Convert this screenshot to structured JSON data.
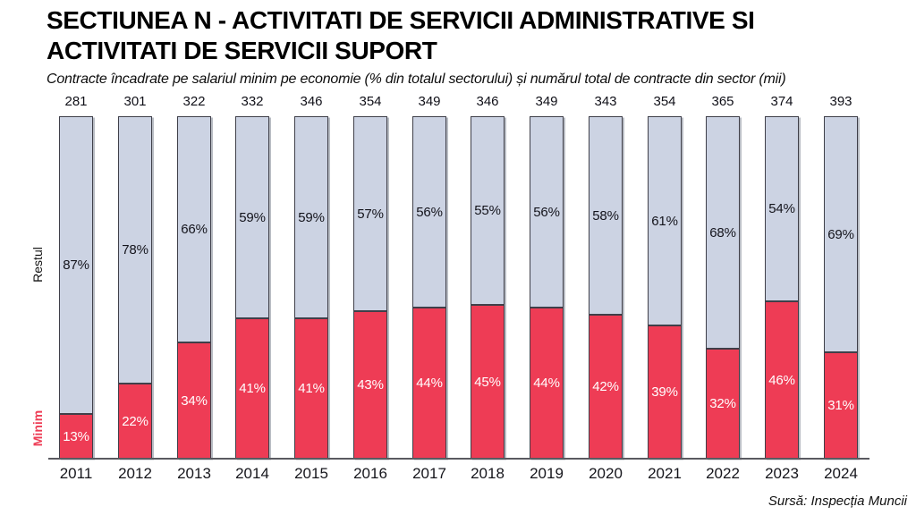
{
  "header": {
    "title": "SECTIUNEA N - ACTIVITATI DE SERVICII ADMINISTRATIVE SI ACTIVITATI DE SERVICII SUPORT",
    "subtitle": "Contracte încadrate pe salariul minim pe economie (% din totalul sectorului) și numărul total de contracte din sector (mii)"
  },
  "side_labels": {
    "restul": "Restul",
    "minim": "Minim"
  },
  "source": "Sursă: Inspecția Muncii",
  "colors": {
    "minim_red": "#ee3c55",
    "rest_gray_blue": "#ccd3e3",
    "bar_border": "#3f3f49",
    "axis_line": "#5a5a60"
  },
  "chart_data": {
    "type": "bar",
    "stacked": true,
    "title": "SECTIUNEA N - ACTIVITATI DE SERVICII ADMINISTRATIVE SI ACTIVITATI DE SERVICII SUPORT",
    "subtitle": "Contracte încadrate pe salariul minim pe economie (% din totalul sectorului) și numărul total de contracte din sector (mii)",
    "categories": [
      "2011",
      "2012",
      "2013",
      "2014",
      "2015",
      "2016",
      "2017",
      "2018",
      "2019",
      "2020",
      "2021",
      "2022",
      "2023",
      "2024"
    ],
    "series": [
      {
        "name": "Minim",
        "color": "#ee3c55",
        "unit": "%",
        "values": [
          13,
          22,
          34,
          41,
          41,
          43,
          44,
          45,
          44,
          42,
          39,
          32,
          46,
          31
        ]
      },
      {
        "name": "Restul",
        "color": "#ccd3e3",
        "unit": "%",
        "values": [
          87,
          78,
          66,
          59,
          59,
          57,
          56,
          55,
          56,
          58,
          61,
          68,
          54,
          69
        ]
      }
    ],
    "bar_totals": [
      281,
      301,
      322,
      332,
      346,
      354,
      349,
      346,
      349,
      343,
      354,
      365,
      374,
      393
    ],
    "ylim": [
      0,
      100
    ],
    "grid": false,
    "legend_position": "left-rotated",
    "source": "Sursă: Inspecția Muncii"
  }
}
